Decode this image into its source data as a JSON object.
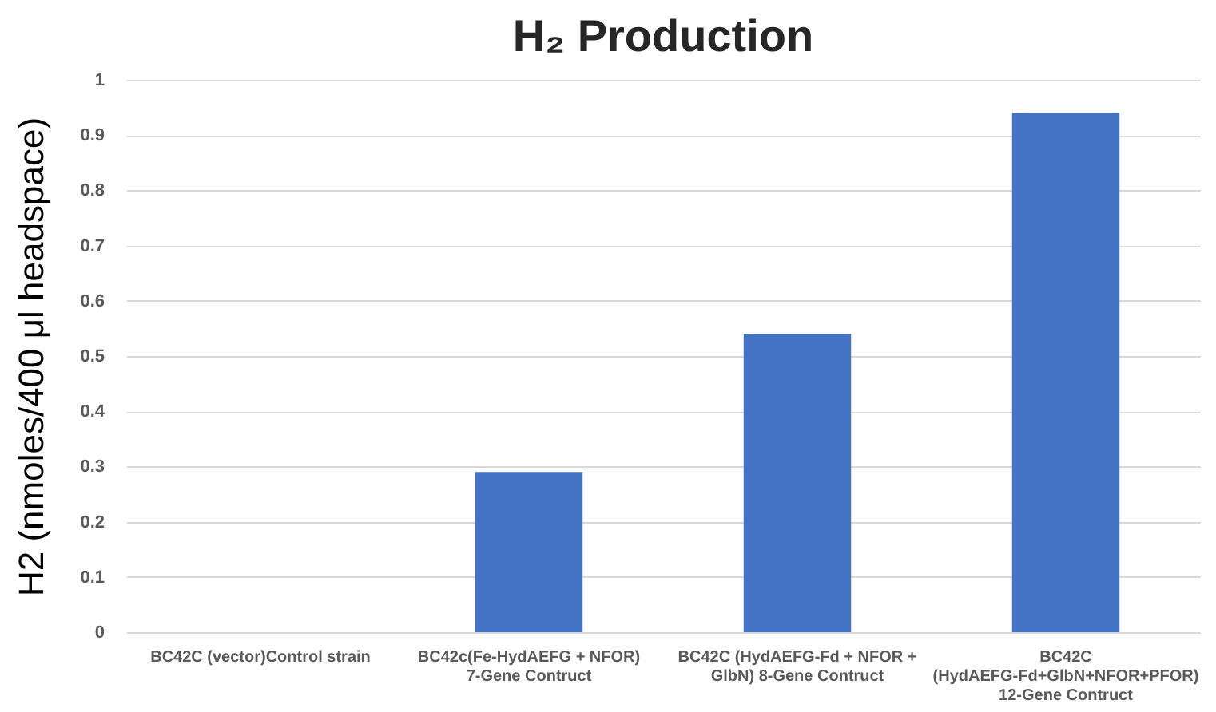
{
  "chart_data": {
    "type": "bar",
    "title": "H₂ Production",
    "ylabel": "H2 (nmoles/400 μl headspace)",
    "categories": [
      "BC42C (vector)Control strain",
      "BC42c(Fe-HydAEFG + NFOR) 7-Gene Contruct",
      "BC42C (HydAEFG-Fd + NFOR + GlbN) 8-Gene Contruct",
      "BC42C (HydAEFG-Fd+GlbN+NFOR+PFOR) 12-Gene Contruct"
    ],
    "values": [
      0,
      0.29,
      0.54,
      0.94
    ],
    "color": "#4472c4",
    "ylim": [
      0,
      1
    ],
    "yticks": [
      0,
      0.1,
      0.2,
      0.3,
      0.4,
      0.5,
      0.6,
      0.7,
      0.8,
      0.9,
      1
    ],
    "grid": true
  }
}
